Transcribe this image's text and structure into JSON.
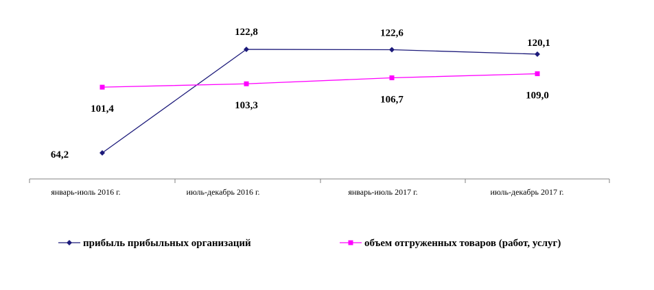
{
  "chart_data": {
    "type": "line",
    "title": "",
    "xlabel": "",
    "ylabel": "",
    "categories": [
      "январь-июль 2016 г.",
      "июль-декабрь 2016 г.",
      "январь-июль 2017 г.",
      "июль-декабрь 2017 г."
    ],
    "series": [
      {
        "name": "прибыль прибыльных организаций",
        "values": [
          64.2,
          122.8,
          122.6,
          120.1
        ],
        "labels": [
          "64,2",
          "122,8",
          "122,6",
          "120,1"
        ],
        "color": "#1c1a7a",
        "marker": "diamond"
      },
      {
        "name": "объем отгруженных товаров (работ, услуг)",
        "values": [
          101.4,
          103.3,
          106.7,
          109.0
        ],
        "labels": [
          "101,4",
          "103,3",
          "106,7",
          "109,0"
        ],
        "color": "#ff00ff",
        "marker": "square"
      }
    ],
    "grid": false,
    "legend_position": "bottom",
    "axis_visible": "x"
  }
}
